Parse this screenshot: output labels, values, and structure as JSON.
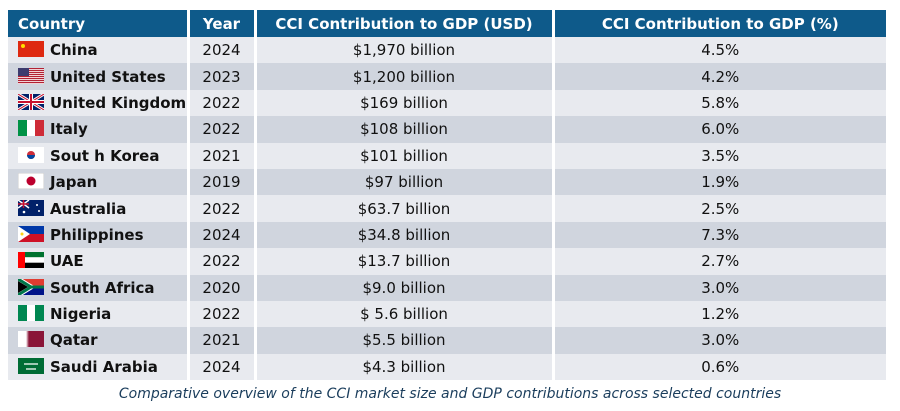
{
  "headers": [
    "Country",
    "Year",
    "CCI Contribution to GDP (USD)",
    "CCI Contribution to GDP (%)"
  ],
  "rows": [
    {
      "flag": "china-flag",
      "country": "China",
      "year": "2024",
      "usd": "$1,970 billion",
      "pct": "4.5%"
    },
    {
      "flag": "usa-flag",
      "country": "United States",
      "year": "2023",
      "usd": "$1,200 billion",
      "pct": "4.2%"
    },
    {
      "flag": "uk-flag",
      "country": "United Kingdom",
      "year": "2022",
      "usd": "$169 billion",
      "pct": "5.8%"
    },
    {
      "flag": "italy-flag",
      "country": "Italy",
      "year": "2022",
      "usd": "$108 billion",
      "pct": "6.0%"
    },
    {
      "flag": "south-korea-flag",
      "country": "Sout h Korea",
      "year": "2021",
      "usd": "$101 billion",
      "pct": "3.5%"
    },
    {
      "flag": "japan-flag",
      "country": "Japan",
      "year": "2019",
      "usd": "$97 billion",
      "pct": "1.9%"
    },
    {
      "flag": "australia-flag",
      "country": "Australia",
      "year": "2022",
      "usd": "$63.7 billion",
      "pct": "2.5%"
    },
    {
      "flag": "philippines-flag",
      "country": "Philippines",
      "year": "2024",
      "usd": "$34.8 billion",
      "pct": "7.3%"
    },
    {
      "flag": "uae-flag",
      "country": "UAE",
      "year": "2022",
      "usd": "$13.7 billion",
      "pct": "2.7%"
    },
    {
      "flag": "south-africa-flag",
      "country": "South Africa",
      "year": "2020",
      "usd": "$9.0 billion",
      "pct": "3.0%"
    },
    {
      "flag": "nigeria-flag",
      "country": "Nigeria",
      "year": "2022",
      "usd": "$ 5.6 billion",
      "pct": "1.2%"
    },
    {
      "flag": "qatar-flag",
      "country": "Qatar",
      "year": "2021",
      "usd": "$5.5 billion",
      "pct": "3.0%"
    },
    {
      "flag": "saudi-arabia-flag",
      "country": "Saudi Arabia",
      "year": "2024",
      "usd": "$4.3 billion",
      "pct": "0.6%"
    }
  ],
  "caption": "Comparative overview of the CCI market size and GDP contributions across selected countries",
  "colors": {
    "header": "#0e5a8a",
    "row_light": "#e8eaef",
    "row_dark": "#d0d5de"
  }
}
